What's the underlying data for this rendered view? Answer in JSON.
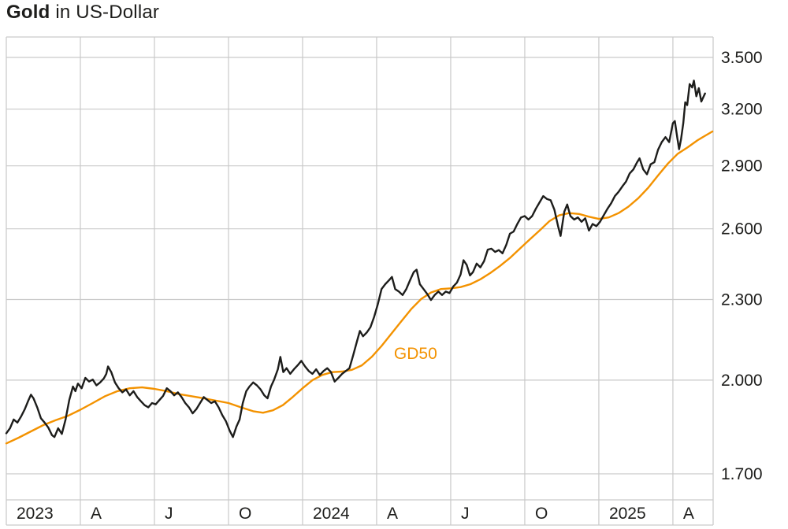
{
  "title": {
    "bold": "Gold",
    "rest": " in US-Dollar"
  },
  "chart_data": {
    "type": "line",
    "title": "Gold in US-Dollar",
    "x_unit": "months since 2023-01-01 (0 = Jan 2023)",
    "x_domain": [
      0,
      28.63
    ],
    "y_scale": "log",
    "y_domain": [
      1625,
      3626
    ],
    "y_gridlines": [
      3500,
      3200,
      2900,
      2600,
      2300,
      2000,
      1700
    ],
    "y_tick_labels": [
      "3.500",
      "3.200",
      "2.900",
      "2.600",
      "2.300",
      "2.000",
      "1.700"
    ],
    "x_gridlines_months": [
      0,
      3,
      6,
      9,
      12,
      15,
      18,
      21,
      24,
      27
    ],
    "x_tick_labels": [
      "2023",
      "A",
      "J",
      "O",
      "2024",
      "A",
      "J",
      "O",
      "2025",
      "A"
    ],
    "grid_color": "#c9c9c9",
    "legend_position": "none",
    "annotation": {
      "text": "GD50",
      "color": "#f39200",
      "x_month": 15.7,
      "y_price": 2075
    },
    "series": [
      {
        "name": "Gold",
        "color": "#1d1d1b",
        "width": 2.4,
        "points": [
          [
            0.0,
            1824
          ],
          [
            0.15,
            1840
          ],
          [
            0.3,
            1868
          ],
          [
            0.45,
            1858
          ],
          [
            0.6,
            1878
          ],
          [
            0.75,
            1902
          ],
          [
            0.9,
            1932
          ],
          [
            1.0,
            1950
          ],
          [
            1.1,
            1938
          ],
          [
            1.25,
            1908
          ],
          [
            1.4,
            1872
          ],
          [
            1.55,
            1858
          ],
          [
            1.7,
            1842
          ],
          [
            1.85,
            1818
          ],
          [
            1.95,
            1812
          ],
          [
            2.1,
            1840
          ],
          [
            2.25,
            1822
          ],
          [
            2.4,
            1868
          ],
          [
            2.55,
            1932
          ],
          [
            2.7,
            1978
          ],
          [
            2.8,
            1962
          ],
          [
            2.9,
            1988
          ],
          [
            3.05,
            1972
          ],
          [
            3.2,
            2008
          ],
          [
            3.35,
            1995
          ],
          [
            3.5,
            2002
          ],
          [
            3.65,
            1982
          ],
          [
            3.8,
            1992
          ],
          [
            3.95,
            2006
          ],
          [
            4.05,
            2022
          ],
          [
            4.12,
            2048
          ],
          [
            4.25,
            2028
          ],
          [
            4.4,
            1992
          ],
          [
            4.55,
            1972
          ],
          [
            4.7,
            1958
          ],
          [
            4.85,
            1968
          ],
          [
            5.0,
            1948
          ],
          [
            5.15,
            1962
          ],
          [
            5.3,
            1942
          ],
          [
            5.45,
            1928
          ],
          [
            5.6,
            1915
          ],
          [
            5.75,
            1908
          ],
          [
            5.9,
            1922
          ],
          [
            6.05,
            1918
          ],
          [
            6.2,
            1932
          ],
          [
            6.35,
            1946
          ],
          [
            6.5,
            1972
          ],
          [
            6.65,
            1962
          ],
          [
            6.8,
            1948
          ],
          [
            6.95,
            1958
          ],
          [
            7.1,
            1942
          ],
          [
            7.25,
            1922
          ],
          [
            7.4,
            1908
          ],
          [
            7.55,
            1888
          ],
          [
            7.7,
            1902
          ],
          [
            7.85,
            1922
          ],
          [
            8.0,
            1942
          ],
          [
            8.15,
            1932
          ],
          [
            8.3,
            1922
          ],
          [
            8.45,
            1928
          ],
          [
            8.6,
            1908
          ],
          [
            8.75,
            1882
          ],
          [
            8.9,
            1862
          ],
          [
            9.05,
            1832
          ],
          [
            9.18,
            1812
          ],
          [
            9.32,
            1845
          ],
          [
            9.45,
            1868
          ],
          [
            9.58,
            1922
          ],
          [
            9.72,
            1962
          ],
          [
            9.85,
            1978
          ],
          [
            10.0,
            1992
          ],
          [
            10.15,
            1982
          ],
          [
            10.3,
            1968
          ],
          [
            10.45,
            1948
          ],
          [
            10.58,
            1938
          ],
          [
            10.72,
            1978
          ],
          [
            10.85,
            2002
          ],
          [
            11.0,
            2038
          ],
          [
            11.1,
            2082
          ],
          [
            11.22,
            2028
          ],
          [
            11.35,
            2042
          ],
          [
            11.5,
            2022
          ],
          [
            11.65,
            2038
          ],
          [
            11.8,
            2052
          ],
          [
            11.95,
            2068
          ],
          [
            12.1,
            2048
          ],
          [
            12.25,
            2032
          ],
          [
            12.4,
            2022
          ],
          [
            12.55,
            2038
          ],
          [
            12.7,
            2018
          ],
          [
            12.85,
            2032
          ],
          [
            13.0,
            2042
          ],
          [
            13.15,
            2028
          ],
          [
            13.3,
            1995
          ],
          [
            13.45,
            2008
          ],
          [
            13.6,
            2022
          ],
          [
            13.75,
            2032
          ],
          [
            13.9,
            2042
          ],
          [
            14.05,
            2088
          ],
          [
            14.2,
            2138
          ],
          [
            14.32,
            2178
          ],
          [
            14.45,
            2158
          ],
          [
            14.6,
            2172
          ],
          [
            14.75,
            2192
          ],
          [
            14.9,
            2232
          ],
          [
            15.05,
            2282
          ],
          [
            15.2,
            2342
          ],
          [
            15.35,
            2362
          ],
          [
            15.5,
            2378
          ],
          [
            15.62,
            2392
          ],
          [
            15.75,
            2342
          ],
          [
            15.9,
            2332
          ],
          [
            16.05,
            2318
          ],
          [
            16.2,
            2342
          ],
          [
            16.35,
            2378
          ],
          [
            16.5,
            2412
          ],
          [
            16.62,
            2422
          ],
          [
            16.75,
            2362
          ],
          [
            16.9,
            2342
          ],
          [
            17.05,
            2322
          ],
          [
            17.2,
            2298
          ],
          [
            17.35,
            2318
          ],
          [
            17.5,
            2332
          ],
          [
            17.65,
            2318
          ],
          [
            17.8,
            2332
          ],
          [
            17.95,
            2326
          ],
          [
            18.1,
            2352
          ],
          [
            18.25,
            2368
          ],
          [
            18.4,
            2402
          ],
          [
            18.52,
            2462
          ],
          [
            18.65,
            2442
          ],
          [
            18.78,
            2398
          ],
          [
            18.9,
            2412
          ],
          [
            19.05,
            2448
          ],
          [
            19.2,
            2432
          ],
          [
            19.35,
            2458
          ],
          [
            19.5,
            2508
          ],
          [
            19.65,
            2512
          ],
          [
            19.8,
            2498
          ],
          [
            19.95,
            2506
          ],
          [
            20.1,
            2492
          ],
          [
            20.25,
            2528
          ],
          [
            20.4,
            2578
          ],
          [
            20.55,
            2588
          ],
          [
            20.7,
            2622
          ],
          [
            20.85,
            2652
          ],
          [
            21.0,
            2658
          ],
          [
            21.15,
            2642
          ],
          [
            21.3,
            2658
          ],
          [
            21.45,
            2692
          ],
          [
            21.6,
            2722
          ],
          [
            21.75,
            2752
          ],
          [
            21.9,
            2738
          ],
          [
            22.05,
            2732
          ],
          [
            22.2,
            2688
          ],
          [
            22.35,
            2612
          ],
          [
            22.45,
            2568
          ],
          [
            22.6,
            2678
          ],
          [
            22.72,
            2712
          ],
          [
            22.85,
            2658
          ],
          [
            23.0,
            2642
          ],
          [
            23.15,
            2652
          ],
          [
            23.3,
            2632
          ],
          [
            23.45,
            2648
          ],
          [
            23.6,
            2592
          ],
          [
            23.75,
            2622
          ],
          [
            23.9,
            2612
          ],
          [
            24.05,
            2632
          ],
          [
            24.2,
            2662
          ],
          [
            24.35,
            2692
          ],
          [
            24.5,
            2718
          ],
          [
            24.65,
            2752
          ],
          [
            24.8,
            2772
          ],
          [
            24.95,
            2798
          ],
          [
            25.1,
            2822
          ],
          [
            25.25,
            2862
          ],
          [
            25.4,
            2882
          ],
          [
            25.55,
            2918
          ],
          [
            25.65,
            2938
          ],
          [
            25.8,
            2882
          ],
          [
            25.95,
            2858
          ],
          [
            26.1,
            2908
          ],
          [
            26.25,
            2918
          ],
          [
            26.4,
            2982
          ],
          [
            26.55,
            3022
          ],
          [
            26.7,
            3048
          ],
          [
            26.85,
            3022
          ],
          [
            27.0,
            3122
          ],
          [
            27.08,
            3134
          ],
          [
            27.18,
            3042
          ],
          [
            27.25,
            2985
          ],
          [
            27.33,
            3038
          ],
          [
            27.42,
            3122
          ],
          [
            27.5,
            3238
          ],
          [
            27.58,
            3222
          ],
          [
            27.68,
            3342
          ],
          [
            27.78,
            3322
          ],
          [
            27.85,
            3362
          ],
          [
            27.95,
            3272
          ],
          [
            28.05,
            3318
          ],
          [
            28.15,
            3242
          ],
          [
            28.3,
            3288
          ]
        ]
      },
      {
        "name": "GD50",
        "color": "#f39200",
        "width": 2.4,
        "points": [
          [
            0,
            1792
          ],
          [
            0.5,
            1810
          ],
          [
            1,
            1830
          ],
          [
            1.5,
            1850
          ],
          [
            2,
            1866
          ],
          [
            2.5,
            1880
          ],
          [
            3,
            1900
          ],
          [
            3.5,
            1922
          ],
          [
            4,
            1945
          ],
          [
            4.5,
            1962
          ],
          [
            5,
            1972
          ],
          [
            5.5,
            1975
          ],
          [
            6,
            1970
          ],
          [
            6.5,
            1962
          ],
          [
            7,
            1952
          ],
          [
            7.5,
            1945
          ],
          [
            8,
            1938
          ],
          [
            8.5,
            1930
          ],
          [
            9,
            1922
          ],
          [
            9.5,
            1908
          ],
          [
            10,
            1895
          ],
          [
            10.4,
            1890
          ],
          [
            10.8,
            1898
          ],
          [
            11.2,
            1915
          ],
          [
            11.6,
            1942
          ],
          [
            12,
            1972
          ],
          [
            12.4,
            2000
          ],
          [
            12.8,
            2018
          ],
          [
            13.2,
            2028
          ],
          [
            13.6,
            2030
          ],
          [
            14,
            2036
          ],
          [
            14.4,
            2052
          ],
          [
            14.8,
            2082
          ],
          [
            15.2,
            2122
          ],
          [
            15.6,
            2168
          ],
          [
            16,
            2215
          ],
          [
            16.4,
            2262
          ],
          [
            16.8,
            2302
          ],
          [
            17.2,
            2328
          ],
          [
            17.6,
            2342
          ],
          [
            18,
            2345
          ],
          [
            18.4,
            2350
          ],
          [
            18.8,
            2362
          ],
          [
            19.2,
            2382
          ],
          [
            19.6,
            2408
          ],
          [
            20,
            2438
          ],
          [
            20.4,
            2472
          ],
          [
            20.8,
            2512
          ],
          [
            21.2,
            2552
          ],
          [
            21.6,
            2592
          ],
          [
            22,
            2635
          ],
          [
            22.4,
            2662
          ],
          [
            22.8,
            2672
          ],
          [
            23.2,
            2668
          ],
          [
            23.6,
            2655
          ],
          [
            24,
            2645
          ],
          [
            24.4,
            2652
          ],
          [
            24.8,
            2672
          ],
          [
            25.2,
            2702
          ],
          [
            25.6,
            2742
          ],
          [
            26,
            2792
          ],
          [
            26.4,
            2852
          ],
          [
            26.8,
            2912
          ],
          [
            27.2,
            2962
          ],
          [
            27.6,
            2995
          ],
          [
            28.0,
            3032
          ],
          [
            28.6,
            3078
          ]
        ]
      }
    ]
  }
}
